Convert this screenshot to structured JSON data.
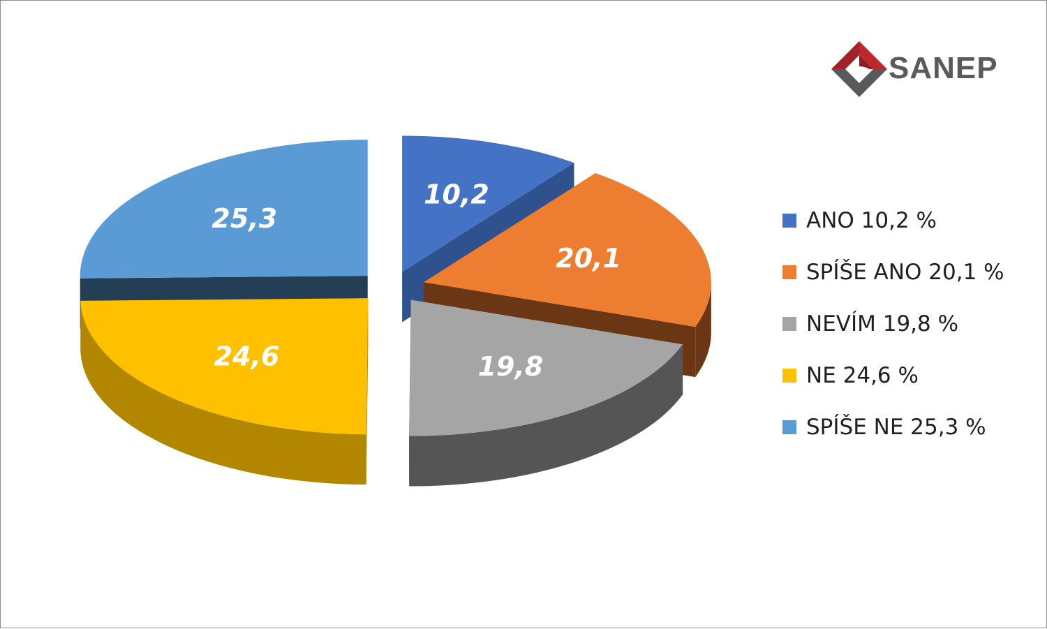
{
  "brand": {
    "logo_text": "SANEP",
    "logo_colors": {
      "red": "#c0272d",
      "gray": "#58595b"
    }
  },
  "chart_data": {
    "type": "pie",
    "style": "3d-exploded",
    "categories": [
      "ANO",
      "SPÍŠE ANO",
      "NEVÍM",
      "NE",
      "SPÍŠE NE"
    ],
    "values": [
      10.2,
      20.1,
      19.8,
      24.6,
      25.3
    ],
    "data_labels": [
      "10,2",
      "20,1",
      "19,8",
      "24,6",
      "25,3"
    ],
    "colors": [
      "#4472c4",
      "#ed7d31",
      "#a5a5a5",
      "#ffc000",
      "#5b9bd5"
    ],
    "side_colors": [
      "#2f528f",
      "#6b3613",
      "#555555",
      "#b38600",
      "#233e55"
    ],
    "legend_placement": "right",
    "legend": [
      "ANO 10,2 %",
      "SPÍŠE ANO 20,1 %",
      "NEVÍM 19,8 %",
      "NE 24,6 %",
      "SPÍŠE NE 25,3 %"
    ]
  }
}
